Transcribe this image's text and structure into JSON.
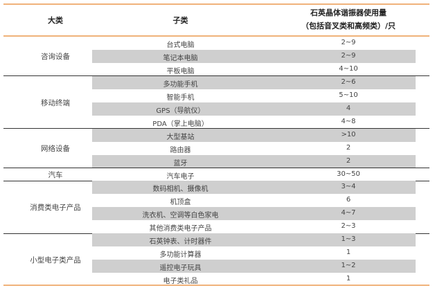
{
  "header": {
    "category": "大类",
    "subcategory": "子类",
    "usage_line1": "石英晶体谐振器使用量",
    "usage_line2": "（包括音叉类和高频类）/只"
  },
  "groups": [
    {
      "category": "咨询设备",
      "rows": [
        {
          "sub": "台式电脑",
          "value": "2~9"
        },
        {
          "sub": "笔记本电脑",
          "value": "2~9"
        },
        {
          "sub": "平板电脑",
          "value": "4~10"
        }
      ]
    },
    {
      "category": "移动终端",
      "rows": [
        {
          "sub": "多功能手机",
          "value": "2~6"
        },
        {
          "sub": "智能手机",
          "value": "5~10"
        },
        {
          "sub": "GPS（导航仪）",
          "value": "4"
        },
        {
          "sub": "PDA（掌上电脑）",
          "value": "4~8"
        }
      ]
    },
    {
      "category": "网络设备",
      "rows": [
        {
          "sub": "大型基站",
          "value": ">10"
        },
        {
          "sub": "路由器",
          "value": "2"
        },
        {
          "sub": "蓝牙",
          "value": "2"
        }
      ]
    },
    {
      "category": "汽车",
      "rows": [
        {
          "sub": "汽车电子",
          "value": "30~50"
        }
      ]
    },
    {
      "category": "消费类电子产品",
      "rows": [
        {
          "sub": "数码相机、摄像机",
          "value": "3~4"
        },
        {
          "sub": "机顶盒",
          "value": "6"
        },
        {
          "sub": "洗衣机、空调等白色家电",
          "value": "4~7"
        },
        {
          "sub": "其他消费类电子产品",
          "value": "2~3"
        }
      ]
    },
    {
      "category": "小型电子类产品",
      "rows": [
        {
          "sub": "石英钟表、计时器件",
          "value": "1~3"
        },
        {
          "sub": "多功能计算器",
          "value": "1"
        },
        {
          "sub": "遥控电子玩具",
          "value": "1~2"
        },
        {
          "sub": "电子类礼品",
          "value": "1"
        }
      ]
    }
  ],
  "colors": {
    "accent_line": "#f0b27a",
    "shade": "#cfcfcf",
    "separator": "#333333"
  }
}
